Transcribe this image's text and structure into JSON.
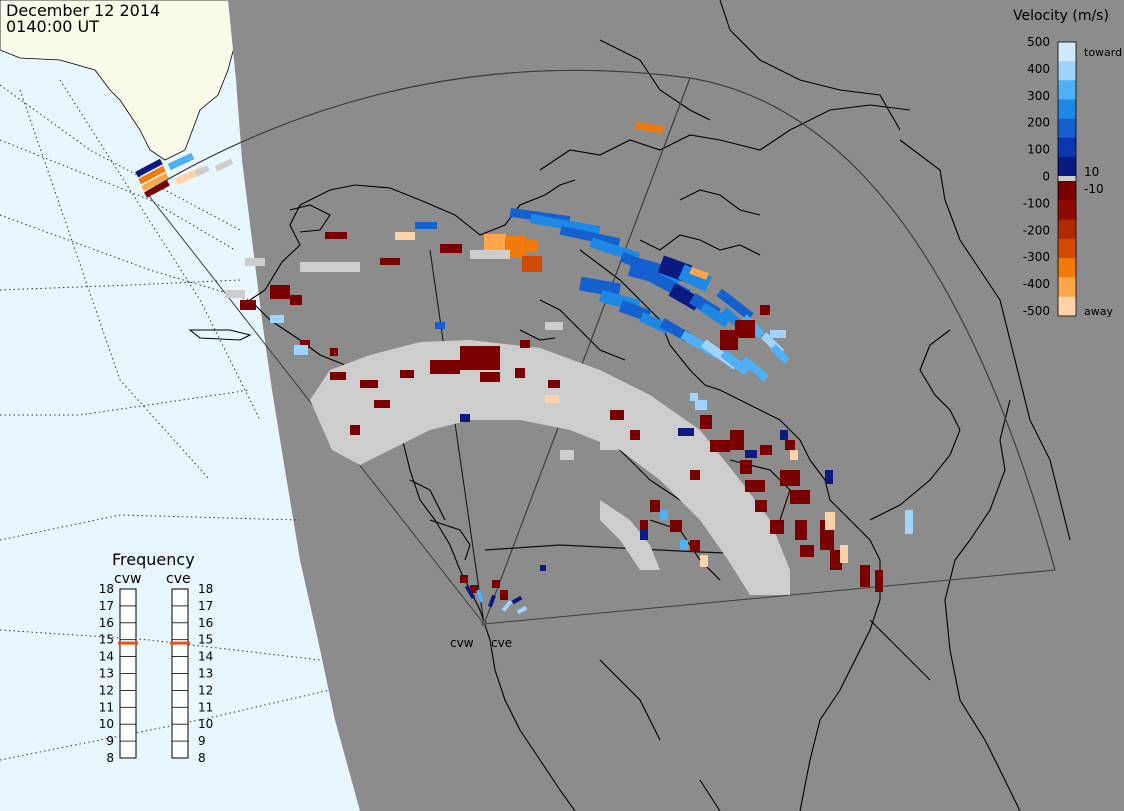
{
  "header": {
    "date": "December 12 2014",
    "time": "0140:00 UT"
  },
  "velocity_scale": {
    "title": "Velocity (m/s)",
    "toward_label": "toward",
    "away_label": "away",
    "ticks": [
      "500",
      "400",
      "300",
      "200",
      "100",
      "0",
      "-100",
      "-200",
      "-300",
      "-400",
      "-500"
    ],
    "inner_ticks": [
      "10",
      "-10"
    ],
    "colors": [
      "#cfe9ff",
      "#9ed4ff",
      "#4fb0f5",
      "#1e88e5",
      "#1560cf",
      "#0a37b0",
      "#0a1a80",
      "#7a0000",
      "#8e0a00",
      "#b02a00",
      "#d04a00",
      "#f07a0a",
      "#ffa54a",
      "#ffd3a8"
    ],
    "gray_color": "#cdcdcd"
  },
  "frequency": {
    "title": "Frequency",
    "radars": [
      "cvw",
      "cve"
    ],
    "levels": [
      "18",
      "17",
      "16",
      "15",
      "14",
      "13",
      "12",
      "11",
      "10",
      "9",
      "8"
    ],
    "cvw_value": 14.8,
    "cve_value": 14.8,
    "marker_color": "#e8501a"
  },
  "radar_sites": {
    "cvw": "cvw",
    "cve": "cve"
  },
  "colors": {
    "night": "#8c8c8c",
    "day_ocean": "#e8f6ff",
    "day_land": "#fbfbea",
    "fov_line": "#4a4a4a",
    "coast": "#000000",
    "ground_scatter": "#cdcdcd"
  }
}
